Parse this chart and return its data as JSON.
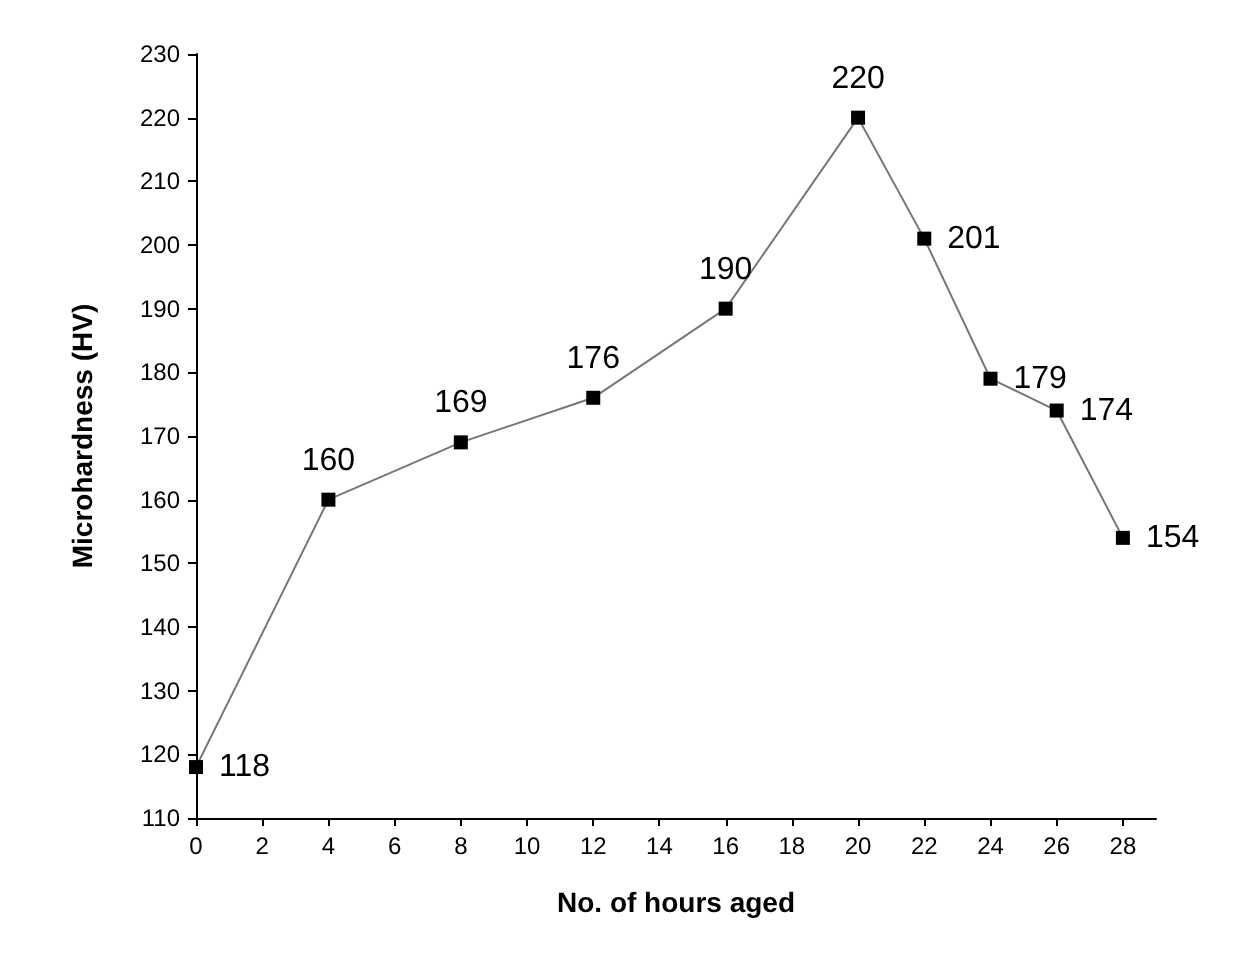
{
  "chart_data": {
    "type": "line",
    "xlabel": "No. of hours aged",
    "ylabel": "Microhardness (HV)",
    "x": [
      0,
      4,
      8,
      12,
      16,
      20,
      22,
      24,
      26,
      28
    ],
    "series": [
      {
        "color": "#000000",
        "values": [
          118,
          160,
          169,
          176,
          190,
          220,
          201,
          179,
          174,
          154
        ]
      }
    ],
    "xlim": [
      0,
      29
    ],
    "xticks": [
      0,
      2,
      4,
      6,
      8,
      10,
      12,
      14,
      16,
      18,
      20,
      22,
      24,
      26,
      28
    ],
    "ylim": [
      110,
      230
    ],
    "yticks": [
      110,
      120,
      130,
      140,
      150,
      160,
      170,
      180,
      190,
      200,
      210,
      220,
      230
    ],
    "marker": "square",
    "line_style": "solid",
    "grid": false,
    "data_labels": true
  }
}
